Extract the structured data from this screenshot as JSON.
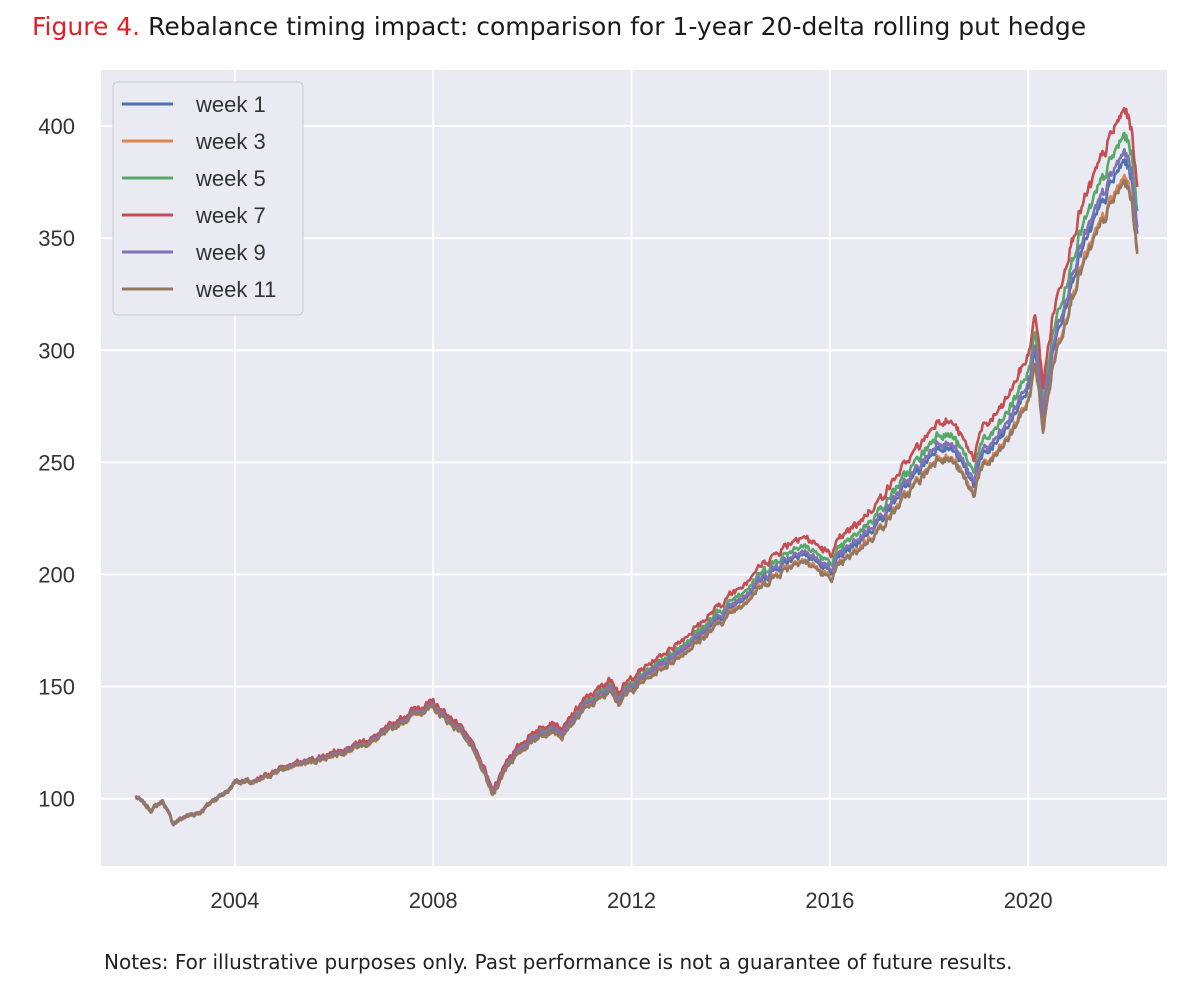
{
  "figure": {
    "label": "Figure 4.",
    "title": "Rebalance timing impact: comparison for 1-year 20-delta rolling put hedge",
    "notes": "Notes: For illustrative purposes only. Past performance is not a guarantee of future results."
  },
  "chart_data": {
    "type": "line",
    "title": "Rebalance timing impact: comparison for 1-year 20-delta rolling put hedge",
    "xlabel": "",
    "ylabel": "",
    "xlim": [
      2001.3,
      2022.8
    ],
    "ylim": [
      70,
      425
    ],
    "xticks": [
      2004,
      2008,
      2012,
      2016,
      2020
    ],
    "yticks": [
      100,
      150,
      200,
      250,
      300,
      350,
      400
    ],
    "grid": true,
    "legend_position": "top-left",
    "background": "#eaeaf2",
    "base_path": {
      "x": [
        2002.0,
        2002.3,
        2002.55,
        2002.75,
        2003.0,
        2003.3,
        2003.6,
        2003.9,
        2004.0,
        2004.4,
        2004.8,
        2005.2,
        2005.6,
        2006.0,
        2006.4,
        2006.8,
        2007.2,
        2007.6,
        2007.8,
        2008.0,
        2008.3,
        2008.6,
        2008.8,
        2009.0,
        2009.2,
        2009.5,
        2010.0,
        2010.4,
        2010.6,
        2011.0,
        2011.3,
        2011.6,
        2011.75,
        2012.0,
        2012.5,
        2013.0,
        2013.5,
        2014.0,
        2014.5,
        2015.0,
        2015.4,
        2015.7,
        2016.0,
        2016.2,
        2016.6,
        2017.0,
        2017.5,
        2018.0,
        2018.2,
        2018.5,
        2018.9,
        2019.0,
        2019.5,
        2020.0,
        2020.15,
        2020.2,
        2020.3,
        2020.5,
        2020.8,
        2021.0,
        2021.4,
        2021.7,
        2021.95,
        2022.1,
        2022.2
      ],
      "y": [
        101,
        95,
        99,
        89,
        92,
        94,
        100,
        104,
        108,
        107,
        112,
        115,
        117,
        120,
        123,
        126,
        132,
        138,
        140,
        141,
        135,
        130,
        122,
        113,
        102,
        116,
        127,
        132,
        128,
        140,
        145,
        150,
        144,
        150,
        158,
        166,
        175,
        185,
        195,
        204,
        210,
        206,
        201,
        207,
        215,
        224,
        238,
        252,
        258,
        255,
        240,
        250,
        262,
        283,
        300,
        290,
        270,
        300,
        325,
        340,
        360,
        375,
        385,
        375,
        350
      ]
    },
    "series": [
      {
        "name": "week 1",
        "color": "#4c72b0",
        "multiplier": 1.0
      },
      {
        "name": "week 3",
        "color": "#dd8452",
        "multiplier": 0.98
      },
      {
        "name": "week 5",
        "color": "#55a868",
        "multiplier": 1.03
      },
      {
        "name": "week 7",
        "color": "#c44e52",
        "multiplier": 1.06
      },
      {
        "name": "week 9",
        "color": "#8172b3",
        "multiplier": 1.01
      },
      {
        "name": "week 11",
        "color": "#937860",
        "multiplier": 0.975
      }
    ]
  }
}
